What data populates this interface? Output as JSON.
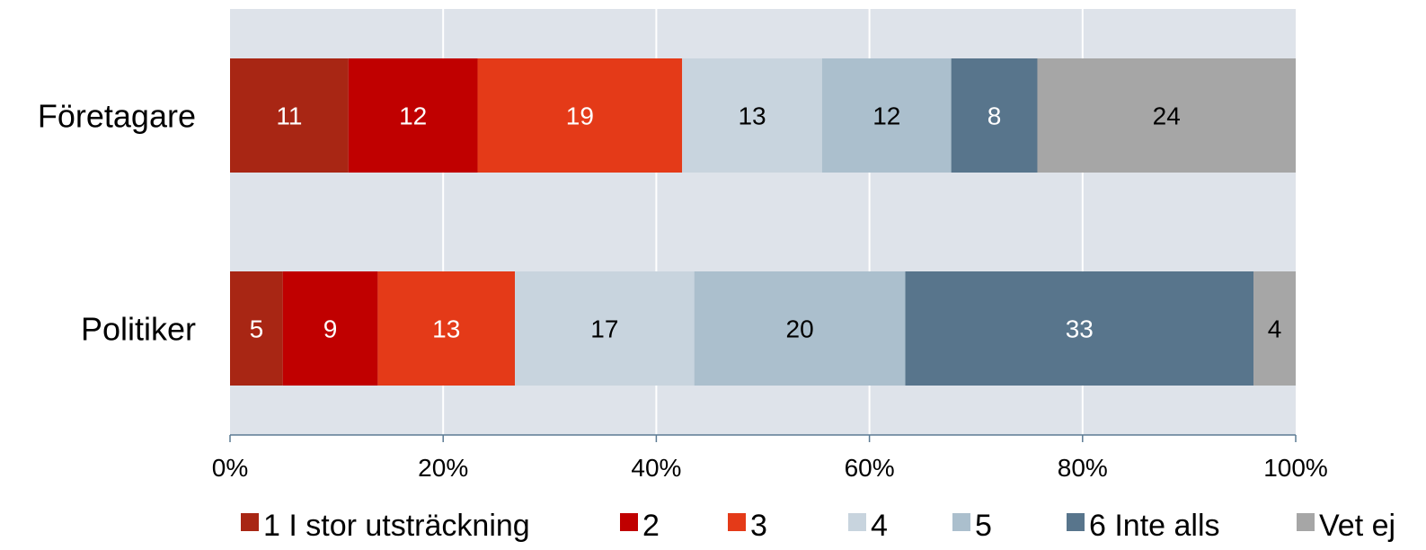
{
  "chart_data": {
    "type": "bar",
    "orientation": "horizontal",
    "stacked": true,
    "categories": [
      "Företagare",
      "Politiker"
    ],
    "series": [
      {
        "name": "1 I stor utsträckning",
        "color": "#A82614",
        "label_color": "#ffffff",
        "values": [
          11,
          5
        ]
      },
      {
        "name": "2",
        "color": "#C00000",
        "label_color": "#ffffff",
        "values": [
          12,
          9
        ]
      },
      {
        "name": "3",
        "color": "#E43A18",
        "label_color": "#ffffff",
        "values": [
          19,
          13
        ]
      },
      {
        "name": "4",
        "color": "#C8D4DE",
        "label_color": "#000000",
        "values": [
          13,
          17
        ]
      },
      {
        "name": "5",
        "color": "#ABBFCD",
        "label_color": "#000000",
        "values": [
          12,
          20
        ]
      },
      {
        "name": "6 Inte alls",
        "color": "#58758C",
        "label_color": "#ffffff",
        "values": [
          8,
          33
        ]
      },
      {
        "name": "Vet ej",
        "color": "#A6A6A6",
        "label_color": "#000000",
        "values": [
          24,
          4
        ]
      }
    ],
    "xlim": [
      0,
      100
    ],
    "x_ticks": [
      "0%",
      "20%",
      "40%",
      "60%",
      "80%",
      "100%"
    ],
    "plot_background": "#DEE3EA",
    "grid": "vertical",
    "legend_position": "bottom"
  }
}
